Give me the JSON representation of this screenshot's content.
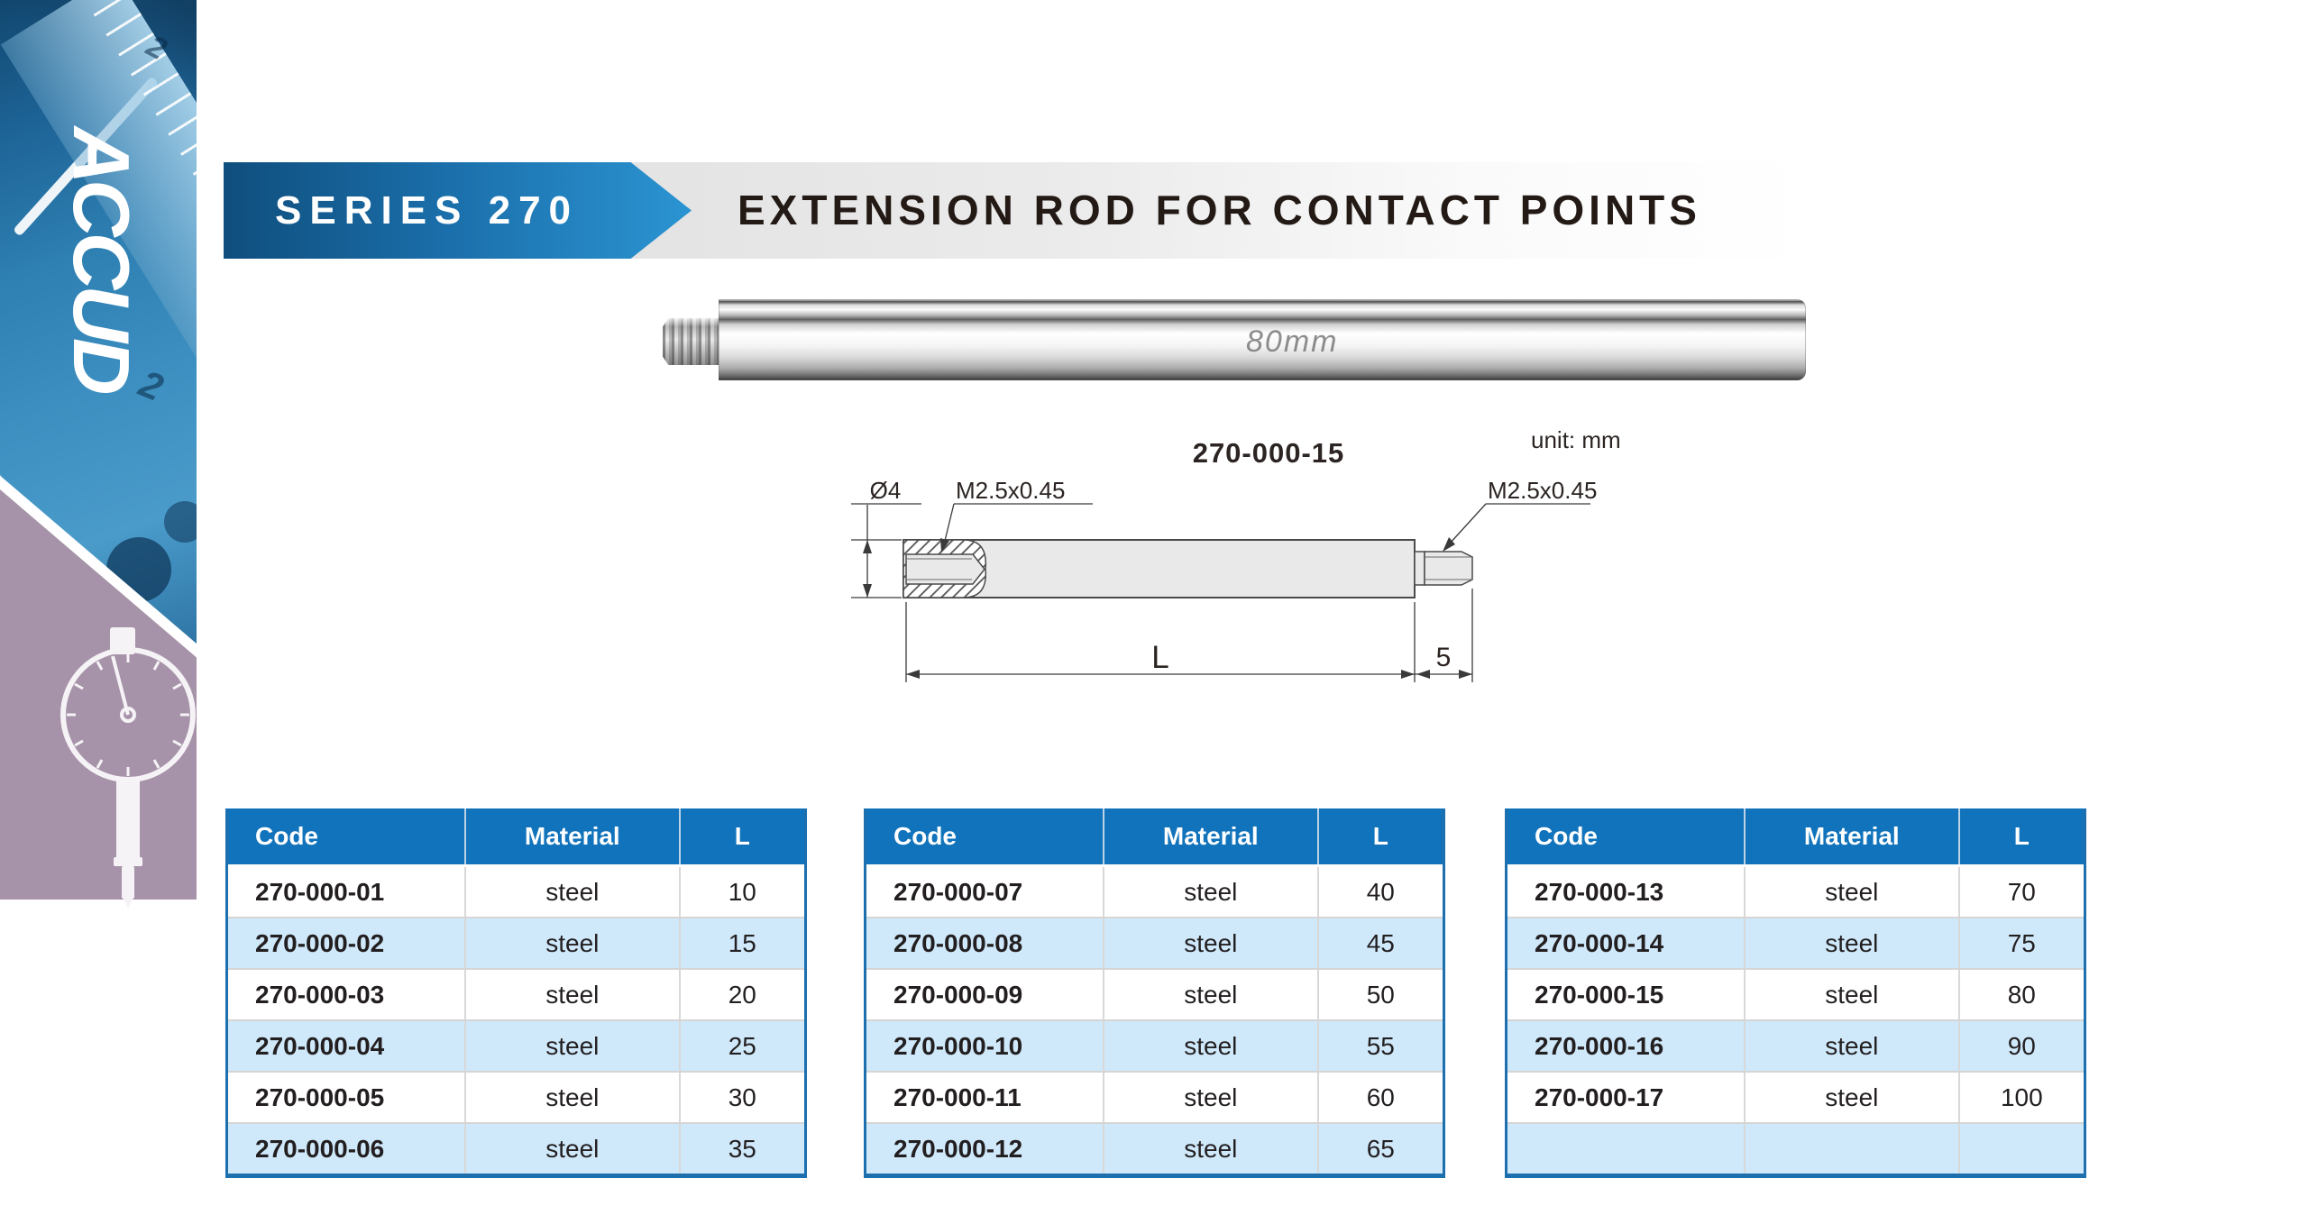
{
  "sidebar": {
    "logo_text": "ACCUD",
    "decor_digit_1": "2",
    "decor_digit_2": "2"
  },
  "header": {
    "series_label": "SERIES 270",
    "title": "EXTENSION ROD FOR CONTACT POINTS"
  },
  "photo": {
    "engraving": "80mm"
  },
  "diagram": {
    "part_number": "270-000-15",
    "unit_label": "unit: mm",
    "diameter_label": "Ø4",
    "left_thread_label": "M2.5x0.45",
    "right_thread_label": "M2.5x0.45",
    "length_dim_label": "L",
    "stud_dim_label": "5"
  },
  "tables": [
    {
      "headers": [
        "Code",
        "Material",
        "L"
      ],
      "rows": [
        [
          "270-000-01",
          "steel",
          "10"
        ],
        [
          "270-000-02",
          "steel",
          "15"
        ],
        [
          "270-000-03",
          "steel",
          "20"
        ],
        [
          "270-000-04",
          "steel",
          "25"
        ],
        [
          "270-000-05",
          "steel",
          "30"
        ],
        [
          "270-000-06",
          "steel",
          "35"
        ]
      ]
    },
    {
      "headers": [
        "Code",
        "Material",
        "L"
      ],
      "rows": [
        [
          "270-000-07",
          "steel",
          "40"
        ],
        [
          "270-000-08",
          "steel",
          "45"
        ],
        [
          "270-000-09",
          "steel",
          "50"
        ],
        [
          "270-000-10",
          "steel",
          "55"
        ],
        [
          "270-000-11",
          "steel",
          "60"
        ],
        [
          "270-000-12",
          "steel",
          "65"
        ]
      ]
    },
    {
      "headers": [
        "Code",
        "Material",
        "L"
      ],
      "rows": [
        [
          "270-000-13",
          "steel",
          "70"
        ],
        [
          "270-000-14",
          "steel",
          "75"
        ],
        [
          "270-000-15",
          "steel",
          "80"
        ],
        [
          "270-000-16",
          "steel",
          "90"
        ],
        [
          "270-000-17",
          "steel",
          "100"
        ],
        [
          "",
          "",
          ""
        ]
      ]
    }
  ],
  "colors": {
    "table_header_blue": "#1173bb",
    "table_alt_row_blue": "#cfe9fb",
    "table_border_blue": "#1d6fae",
    "banner_blue_dark": "#0f4e7d",
    "banner_blue_light": "#2b94d2",
    "sidebar_purple": "#a793a9",
    "title_text": "#231a16"
  }
}
